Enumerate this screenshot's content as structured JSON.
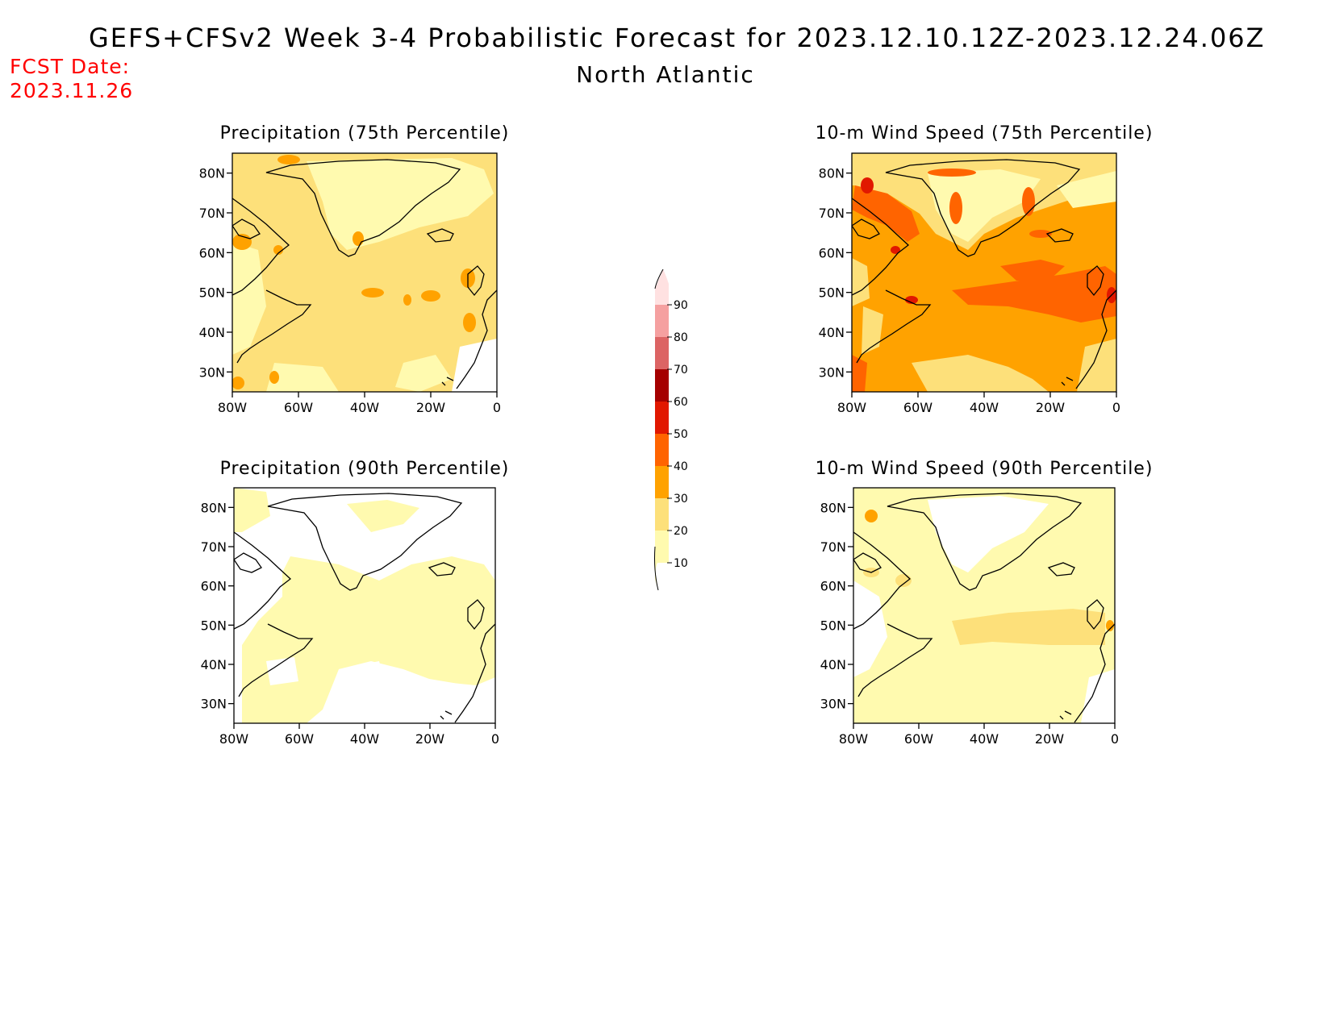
{
  "header": {
    "title": "GEFS+CFSv2 Week 3-4 Probabilistic Forecast for 2023.12.10.12Z-2023.12.24.06Z",
    "subtitle": "North Atlantic",
    "fcst_label": "FCST Date:",
    "fcst_date": "2023.11.26"
  },
  "map_extent": {
    "lon": [
      -80,
      0
    ],
    "lat": [
      25,
      85
    ]
  },
  "axes": {
    "lat_ticks": [
      "80N",
      "70N",
      "60N",
      "50N",
      "40N",
      "30N"
    ],
    "lon_ticks": [
      "80W",
      "60W",
      "40W",
      "20W",
      "0"
    ]
  },
  "panels": [
    {
      "id": "precip75",
      "title": "Precipitation (75th Percentile)",
      "dominant_level": 1,
      "background": "#fde07a"
    },
    {
      "id": "wind75",
      "title": "10-m Wind Speed (75th Percentile)",
      "dominant_level": 2,
      "background": "#ffa200"
    },
    {
      "id": "precip90",
      "title": "Precipitation (90th Percentile)",
      "dominant_level": 0,
      "background": "#fff7b4"
    },
    {
      "id": "wind90",
      "title": "10-m Wind Speed (90th Percentile)",
      "dominant_level": 0,
      "background": "#fff7b4"
    }
  ],
  "colorbar": {
    "levels": [
      {
        "label": "10",
        "color": "#fffaaf"
      },
      {
        "label": "20",
        "color": "#fde07a"
      },
      {
        "label": "30",
        "color": "#ffa200"
      },
      {
        "label": "40",
        "color": "#ff6400"
      },
      {
        "label": "50",
        "color": "#e11800"
      },
      {
        "label": "60",
        "color": "#a50000"
      },
      {
        "label": "70",
        "color": "#dc6464"
      },
      {
        "label": "80",
        "color": "#f5a0a0"
      },
      {
        "label": "90",
        "color": "#ffe1e1"
      }
    ]
  }
}
